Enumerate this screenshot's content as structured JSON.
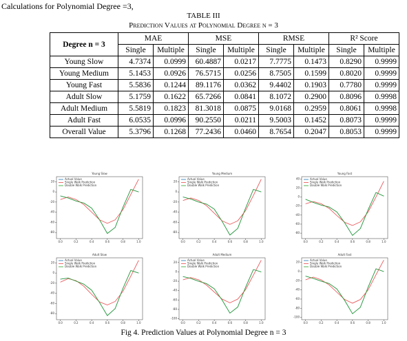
{
  "header": {
    "intro": "Calculations for Polynomial Degree =3,",
    "table_label": "TABLE III",
    "table_title": "Prediction Values at Polynomial Degree n = 3"
  },
  "table": {
    "corner": "Degree n = 3",
    "groups": [
      "MAE",
      "MSE",
      "RMSE",
      "R² Score"
    ],
    "subheaders": [
      "Single",
      "Multiple",
      "Single",
      "Multiple",
      "Single",
      "Multiple",
      "Single",
      "Multiple"
    ],
    "rows": [
      [
        "Young Slow",
        "4.7374",
        "0.0999",
        "60.4887",
        "0.0217",
        "7.7775",
        "0.1473",
        "0.8290",
        "0.9999"
      ],
      [
        "Young Medium",
        "5.1453",
        "0.0926",
        "76.5715",
        "0.0256",
        "8.7505",
        "0.1599",
        "0.8020",
        "0.9999"
      ],
      [
        "Young Fast",
        "5.5836",
        "0.1244",
        "89.1176",
        "0.0362",
        "9.4402",
        "0.1903",
        "0.7780",
        "0.9999"
      ],
      [
        "Adult Slow",
        "5.1759",
        "0.1622",
        "65.7266",
        "0.0841",
        "8.1072",
        "0.2900",
        "0.8096",
        "0.9998"
      ],
      [
        "Adult Medium",
        "5.5819",
        "0.1823",
        "81.3018",
        "0.0875",
        "9.0168",
        "0.2959",
        "0.8061",
        "0.9998"
      ],
      [
        "Adult Fast",
        "6.0535",
        "0.0996",
        "90.2550",
        "0.0211",
        "9.5003",
        "0.1452",
        "0.8073",
        "0.9999"
      ],
      [
        "Overall Value",
        "5.3796",
        "0.1268",
        "77.2436",
        "0.0460",
        "8.7654",
        "0.2047",
        "0.8053",
        "0.9999"
      ]
    ]
  },
  "chart_data": [
    {
      "type": "line",
      "title": "Young Slow",
      "x": [
        0,
        0.1,
        0.2,
        0.3,
        0.4,
        0.5,
        0.6,
        0.7,
        0.8,
        0.9,
        1.0
      ],
      "xlim": [
        -0.05,
        1.05
      ],
      "xticks": [
        {
          "value": 0,
          "label": "0.0"
        },
        {
          "value": 0.2,
          "label": "0.2"
        },
        {
          "value": 0.4,
          "label": "0.4"
        },
        {
          "value": 0.6,
          "label": "0.6"
        },
        {
          "value": 0.8,
          "label": "0.8"
        },
        {
          "value": 1.0,
          "label": "1.0"
        }
      ],
      "ylim": [
        -92,
        30
      ],
      "yticks": [
        20,
        0,
        -20,
        -40,
        -60,
        -80
      ],
      "series": [
        {
          "name": "Actual Value",
          "color": "#1f77b4",
          "values": [
            -8,
            -12,
            -18,
            -22,
            -32,
            -55,
            -82,
            -70,
            -30,
            5,
            0
          ]
        },
        {
          "name": "Single Walk Prediction",
          "color": "#e8474a",
          "values": [
            -15,
            -10,
            -15,
            -25,
            -40,
            -55,
            -62,
            -55,
            -35,
            -5,
            25
          ]
        },
        {
          "name": "Double Walk Prediction",
          "color": "#2ca02c",
          "values": [
            -8,
            -12,
            -18,
            -22,
            -32,
            -55,
            -82,
            -70,
            -30,
            5,
            0
          ]
        }
      ]
    },
    {
      "type": "line",
      "title": "Young Medium",
      "x": [
        0,
        0.1,
        0.2,
        0.3,
        0.4,
        0.5,
        0.6,
        0.7,
        0.8,
        0.9,
        1.0
      ],
      "xlim": [
        -0.05,
        1.05
      ],
      "xticks": [
        {
          "value": 0,
          "label": "0.0"
        },
        {
          "value": 0.2,
          "label": "0.2"
        },
        {
          "value": 0.4,
          "label": "0.4"
        },
        {
          "value": 0.6,
          "label": "0.6"
        },
        {
          "value": 0.8,
          "label": "0.8"
        },
        {
          "value": 1.0,
          "label": "1.0"
        }
      ],
      "ylim": [
        -92,
        30
      ],
      "yticks": [
        20,
        0,
        -20,
        -40,
        -60,
        -80
      ],
      "series": [
        {
          "name": "Actual Value",
          "color": "#1f77b4",
          "values": [
            -10,
            -14,
            -20,
            -24,
            -34,
            -58,
            -85,
            -72,
            -32,
            5,
            0
          ]
        },
        {
          "name": "Single Walk Prediction",
          "color": "#e8474a",
          "values": [
            -17,
            -12,
            -17,
            -27,
            -42,
            -57,
            -64,
            -57,
            -37,
            -7,
            25
          ]
        },
        {
          "name": "Double Walk Prediction",
          "color": "#2ca02c",
          "values": [
            -10,
            -14,
            -20,
            -24,
            -34,
            -58,
            -85,
            -72,
            -32,
            5,
            0
          ]
        }
      ]
    },
    {
      "type": "line",
      "title": "Young Fast",
      "x": [
        0,
        0.1,
        0.2,
        0.3,
        0.4,
        0.5,
        0.6,
        0.7,
        0.8,
        0.9,
        1.0
      ],
      "xlim": [
        -0.05,
        1.05
      ],
      "xticks": [
        {
          "value": 0,
          "label": "0.0"
        },
        {
          "value": 0.2,
          "label": "0.2"
        },
        {
          "value": 0.4,
          "label": "0.4"
        },
        {
          "value": 0.6,
          "label": "0.6"
        },
        {
          "value": 0.8,
          "label": "0.8"
        },
        {
          "value": 1.0,
          "label": "1.0"
        }
      ],
      "ylim": [
        -92,
        45
      ],
      "yticks": [
        40,
        20,
        0,
        -20,
        -40,
        -60,
        -80
      ],
      "series": [
        {
          "name": "Actual Value",
          "color": "#1f77b4",
          "values": [
            -5,
            -12,
            -18,
            -22,
            -33,
            -57,
            -85,
            -70,
            -28,
            10,
            2
          ]
        },
        {
          "name": "Single Walk Prediction",
          "color": "#e8474a",
          "values": [
            -15,
            -10,
            -15,
            -25,
            -41,
            -56,
            -63,
            -55,
            -33,
            0,
            35
          ]
        },
        {
          "name": "Double Walk Prediction",
          "color": "#2ca02c",
          "values": [
            -5,
            -12,
            -18,
            -22,
            -33,
            -57,
            -85,
            -70,
            -28,
            10,
            2
          ]
        }
      ]
    },
    {
      "type": "line",
      "title": "Adult Slow",
      "x": [
        0,
        0.1,
        0.2,
        0.3,
        0.4,
        0.5,
        0.6,
        0.7,
        0.8,
        0.9,
        1.0
      ],
      "xlim": [
        -0.05,
        1.05
      ],
      "xticks": [
        {
          "value": 0,
          "label": "0.0"
        },
        {
          "value": 0.2,
          "label": "0.2"
        },
        {
          "value": 0.4,
          "label": "0.4"
        },
        {
          "value": 0.6,
          "label": "0.6"
        },
        {
          "value": 0.8,
          "label": "0.8"
        },
        {
          "value": 1.0,
          "label": "1.0"
        }
      ],
      "ylim": [
        -92,
        30
      ],
      "yticks": [
        20,
        0,
        -20,
        -40,
        -60,
        -80
      ],
      "series": [
        {
          "name": "Actual Value",
          "color": "#1f77b4",
          "values": [
            -12,
            -10,
            -16,
            -22,
            -34,
            -58,
            -84,
            -70,
            -30,
            5,
            0
          ]
        },
        {
          "name": "Single Walk Prediction",
          "color": "#e8474a",
          "values": [
            -18,
            -11,
            -15,
            -26,
            -42,
            -57,
            -63,
            -56,
            -36,
            -6,
            25
          ]
        },
        {
          "name": "Double Walk Prediction",
          "color": "#2ca02c",
          "values": [
            -12,
            -10,
            -16,
            -22,
            -34,
            -58,
            -84,
            -70,
            -30,
            5,
            0
          ]
        }
      ]
    },
    {
      "type": "line",
      "title": "Adult Medium",
      "x": [
        0,
        0.1,
        0.2,
        0.3,
        0.4,
        0.5,
        0.6,
        0.7,
        0.8,
        0.9,
        1.0
      ],
      "xlim": [
        -0.05,
        1.05
      ],
      "xticks": [
        {
          "value": 0,
          "label": "0.0"
        },
        {
          "value": 0.2,
          "label": "0.2"
        },
        {
          "value": 0.4,
          "label": "0.4"
        },
        {
          "value": 0.6,
          "label": "0.6"
        },
        {
          "value": 0.8,
          "label": "0.8"
        },
        {
          "value": 1.0,
          "label": "1.0"
        }
      ],
      "ylim": [
        -102,
        30
      ],
      "yticks": [
        20,
        0,
        -20,
        -40,
        -60,
        -80,
        -100
      ],
      "series": [
        {
          "name": "Actual Value",
          "color": "#1f77b4",
          "values": [
            -10,
            -14,
            -20,
            -25,
            -36,
            -60,
            -88,
            -75,
            -33,
            5,
            0
          ]
        },
        {
          "name": "Single Walk Prediction",
          "color": "#e8474a",
          "values": [
            -17,
            -12,
            -17,
            -28,
            -43,
            -58,
            -66,
            -58,
            -38,
            -7,
            25
          ]
        },
        {
          "name": "Double Walk Prediction",
          "color": "#2ca02c",
          "values": [
            -10,
            -14,
            -20,
            -25,
            -36,
            -60,
            -88,
            -75,
            -33,
            5,
            0
          ]
        }
      ]
    },
    {
      "type": "line",
      "title": "Adult Fast",
      "x": [
        0,
        0.1,
        0.2,
        0.3,
        0.4,
        0.5,
        0.6,
        0.7,
        0.8,
        0.9,
        1.0
      ],
      "xlim": [
        -0.05,
        1.05
      ],
      "xticks": [
        {
          "value": 0,
          "label": "0.0"
        },
        {
          "value": 0.2,
          "label": "0.2"
        },
        {
          "value": 0.4,
          "label": "0.4"
        },
        {
          "value": 0.6,
          "label": "0.6"
        },
        {
          "value": 0.8,
          "label": "0.8"
        },
        {
          "value": 1.0,
          "label": "1.0"
        }
      ],
      "ylim": [
        -105,
        30
      ],
      "yticks": [
        20,
        0,
        -20,
        -40,
        -60,
        -80,
        -100
      ],
      "series": [
        {
          "name": "Actual Value",
          "color": "#1f77b4",
          "values": [
            -10,
            -15,
            -21,
            -26,
            -38,
            -63,
            -92,
            -78,
            -34,
            6,
            0
          ]
        },
        {
          "name": "Single Walk Prediction",
          "color": "#e8474a",
          "values": [
            -18,
            -12,
            -18,
            -29,
            -45,
            -61,
            -69,
            -61,
            -40,
            -7,
            25
          ]
        },
        {
          "name": "Double Walk Prediction",
          "color": "#2ca02c",
          "values": [
            -10,
            -15,
            -21,
            -26,
            -38,
            -63,
            -92,
            -78,
            -34,
            6,
            0
          ]
        }
      ]
    }
  ],
  "caption": "Fig 4. Prediction Values at Polynomial Degree n = 3"
}
